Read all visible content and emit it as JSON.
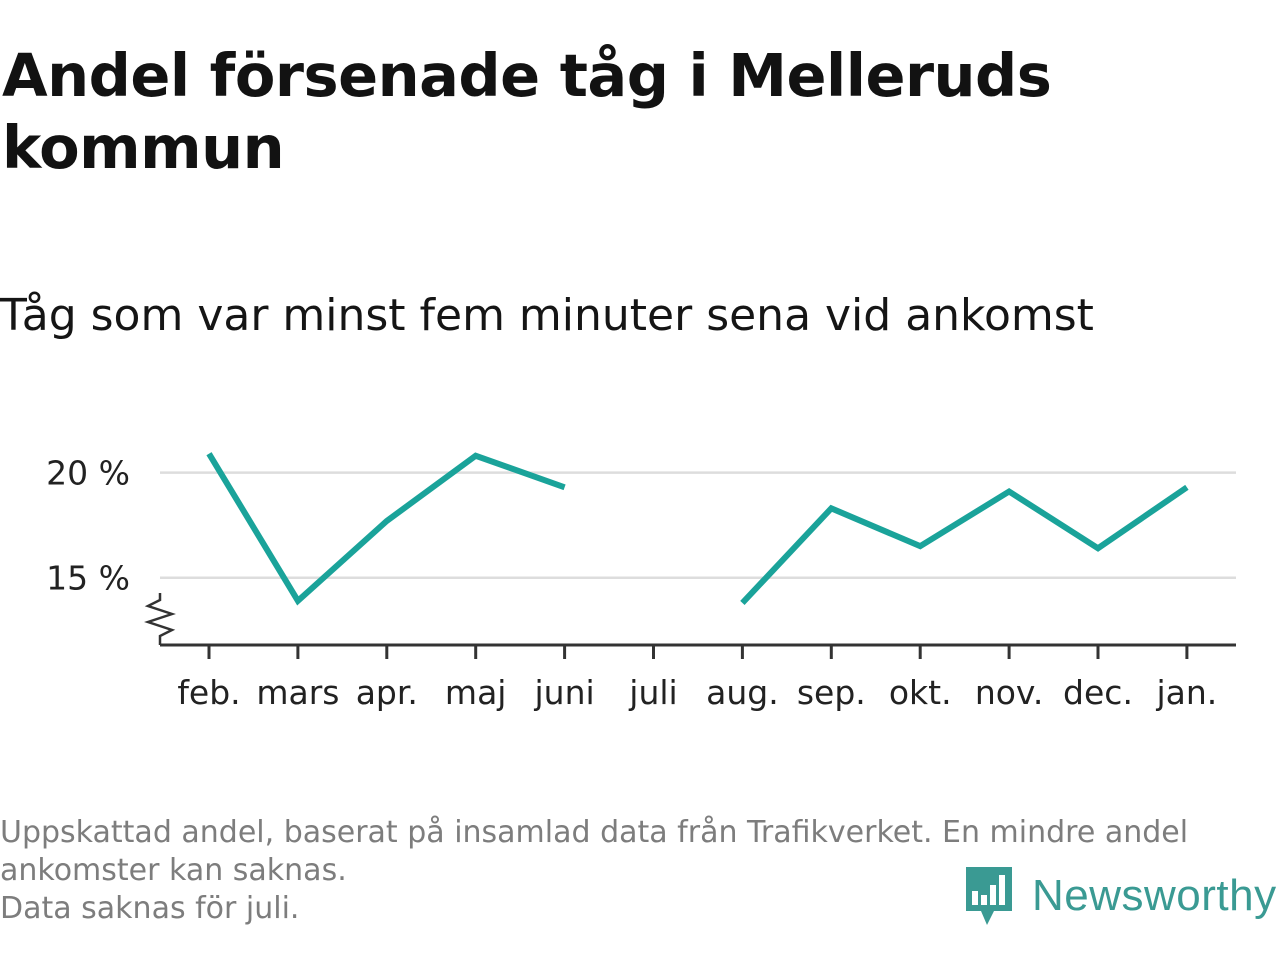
{
  "title": "Andel försenade tåg i Melleruds kommun",
  "subtitle": "Tåg som var minst fem minuter sena vid ankomst",
  "footer": {
    "lines": [
      "Uppskattad andel, baserat på insamlad data från Trafikverket. En mindre andel ankomster kan saknas.",
      "Data saknas för juli."
    ]
  },
  "brand": {
    "name": "Newsworthy",
    "icon": "newsworthy-logo-icon",
    "color": "#3a9a93"
  },
  "colors": {
    "line": "#1aa39a",
    "grid": "#dddddd",
    "axis": "#333333"
  },
  "chart_data": {
    "type": "line",
    "categories": [
      "feb.",
      "mars",
      "apr.",
      "maj",
      "juni",
      "juli",
      "aug.",
      "sep.",
      "okt.",
      "nov.",
      "dec.",
      "jan."
    ],
    "series": [
      {
        "values": [
          20.9,
          13.9,
          17.7,
          20.8,
          19.3,
          null,
          13.8,
          18.3,
          16.5,
          19.1,
          16.4,
          19.3
        ]
      }
    ],
    "yticks": [
      15,
      20
    ],
    "ytick_labels": [
      "15 %",
      "20 %"
    ],
    "ylim": [
      11.8,
      22.5
    ],
    "y_axis_break": true,
    "grid": "horizontal",
    "legend": "none"
  }
}
